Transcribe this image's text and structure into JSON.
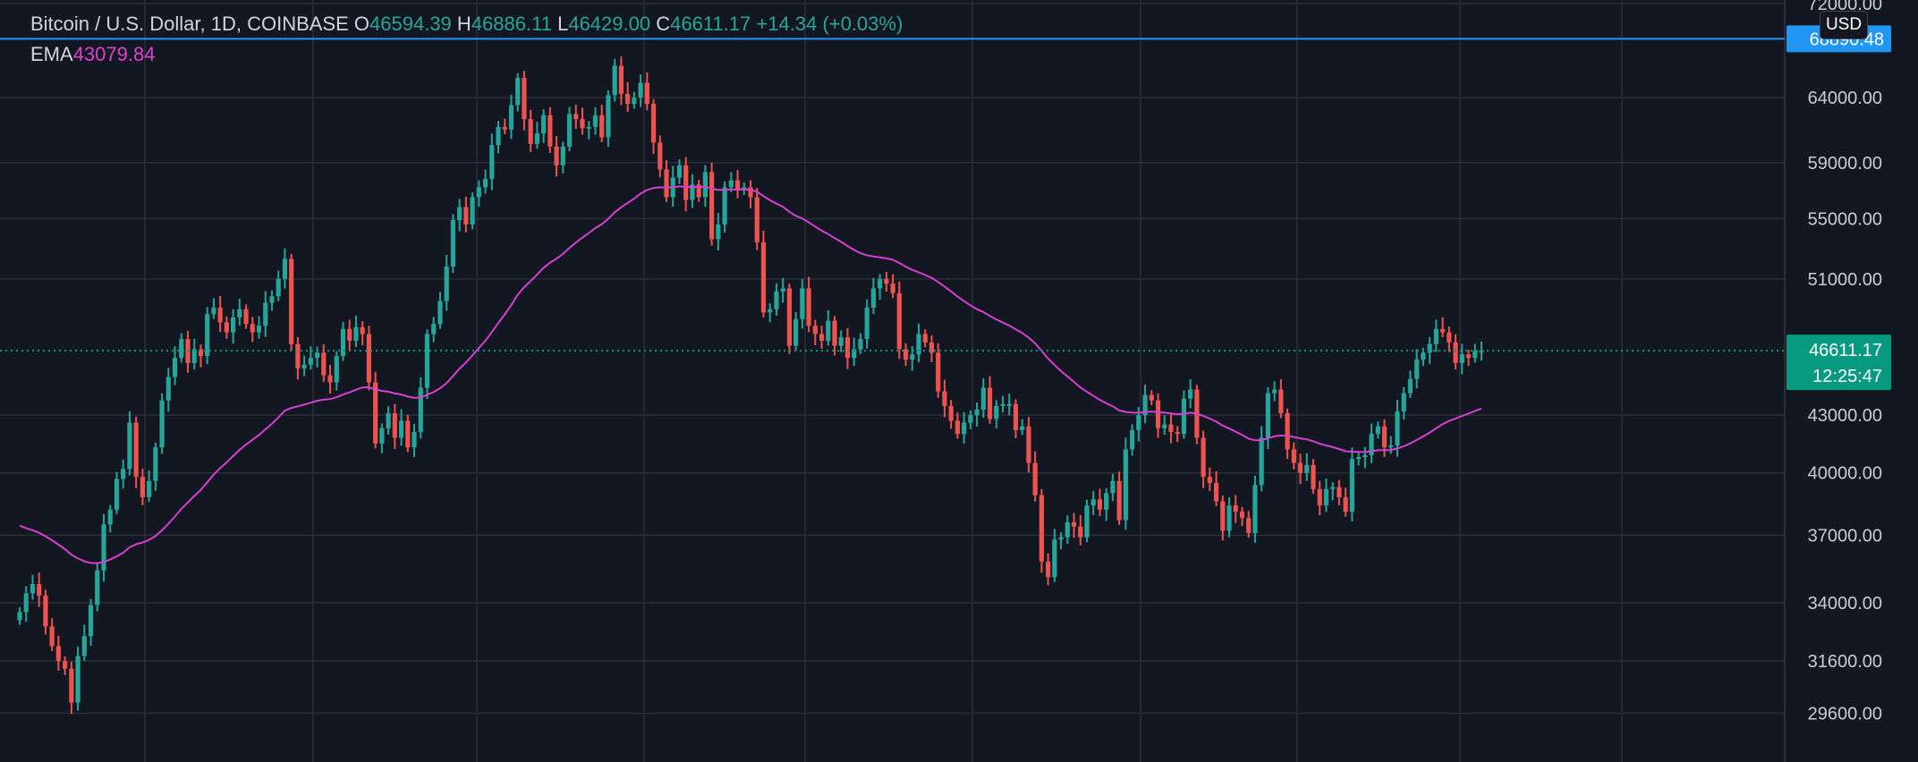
{
  "header": {
    "symbol": "Bitcoin / U.S. Dollar, 1D, COINBASE",
    "open_label": "O",
    "open_value": "46594.39",
    "high_label": "H",
    "high_value": "46886.11",
    "low_label": "L",
    "low_value": "46429.00",
    "close_label": "C",
    "close_value": "46611.17",
    "change": "+14.34 (+0.03%)"
  },
  "indicator": {
    "name": "EMA",
    "value": "43079.84"
  },
  "currency_button": "USD",
  "price_tags": {
    "high_line_value": "68890.48",
    "last_price": "46611.17",
    "countdown": "12:25:47"
  },
  "colors": {
    "background": "#131722",
    "grid": "#2a2e39",
    "up": "#26a69a",
    "down": "#ef5350",
    "ema": "#d63fd0",
    "high_line": "#2196f3",
    "last_price": "#089981"
  },
  "chart_data": {
    "type": "candlestick",
    "title": "Bitcoin / U.S. Dollar, 1D, COINBASE",
    "y_scale": "log",
    "ylim": [
      28800,
      72000
    ],
    "y_ticks": [
      72000,
      64000,
      59000,
      55000,
      51000,
      43000,
      40000,
      37000,
      34000,
      31600,
      29600
    ],
    "grid": true,
    "ema_last": 43079.84,
    "last_price": 46611.17,
    "high_line": 68890.48,
    "closes": [
      33600,
      34400,
      34800,
      34300,
      33000,
      32200,
      31600,
      31300,
      30000,
      31800,
      32600,
      33900,
      35400,
      37500,
      38200,
      39700,
      40200,
      42600,
      39800,
      38800,
      39600,
      41300,
      43800,
      45100,
      46200,
      47300,
      45900,
      46700,
      46300,
      48800,
      49200,
      48300,
      47700,
      48600,
      49100,
      48200,
      47700,
      48100,
      49500,
      49900,
      51000,
      52300,
      47000,
      45600,
      45800,
      46200,
      46500,
      45200,
      44800,
      46300,
      47900,
      47200,
      48000,
      47600,
      44800,
      41500,
      42300,
      43100,
      41800,
      42700,
      41300,
      42100,
      44500,
      47600,
      48200,
      49600,
      51800,
      54900,
      55800,
      54600,
      56500,
      57200,
      57800,
      60300,
      61700,
      61500,
      63400,
      65600,
      62300,
      60400,
      61200,
      62600,
      60200,
      58800,
      60200,
      62700,
      62300,
      61600,
      61700,
      62600,
      60900,
      64200,
      66600,
      64300,
      63500,
      64000,
      65200,
      63500,
      60500,
      58500,
      56500,
      57900,
      58800,
      56300,
      57400,
      56500,
      58300,
      53600,
      54600,
      57200,
      57700,
      57100,
      57200,
      56500,
      53400,
      48900,
      49100,
      50200,
      50400,
      46900,
      48500,
      50400,
      48100,
      47600,
      47200,
      48400,
      46900,
      47400,
      46200,
      46700,
      47300,
      49200,
      50400,
      51000,
      50700,
      50100,
      46700,
      46100,
      46400,
      47600,
      47100,
      46500,
      44300,
      43500,
      42700,
      42000,
      42600,
      43000,
      43300,
      44500,
      42800,
      43500,
      43600,
      43600,
      42200,
      42400,
      40500,
      38900,
      35800,
      35100,
      36800,
      36900,
      37600,
      37400,
      36900,
      38400,
      38700,
      38200,
      39000,
      39600,
      37700,
      41200,
      42200,
      43000,
      44100,
      43800,
      42300,
      42500,
      42100,
      42000,
      43900,
      44400,
      41800,
      39800,
      39500,
      38600,
      37200,
      38400,
      38100,
      37800,
      37100,
      39400,
      41800,
      44200,
      44400,
      43100,
      41200,
      40500,
      40000,
      40400,
      39200,
      38400,
      39200,
      39300,
      38800,
      38100,
      40700,
      40800,
      40900,
      42000,
      42400,
      41300,
      41400,
      43200,
      44200,
      45000,
      46100,
      46500,
      47000,
      47900,
      47700,
      47100,
      45900,
      46400,
      46200,
      46600,
      46611
    ]
  }
}
